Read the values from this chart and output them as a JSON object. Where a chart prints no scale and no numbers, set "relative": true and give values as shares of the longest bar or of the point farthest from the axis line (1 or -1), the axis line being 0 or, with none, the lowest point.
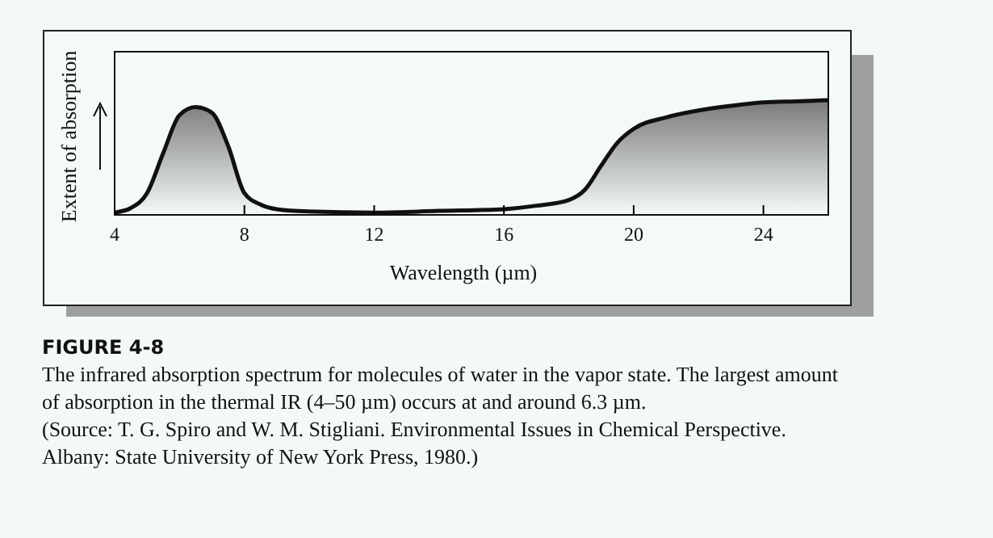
{
  "chart_data": {
    "type": "area",
    "title": "FIGURE 4-8",
    "subtitle": "The infrared absorption spectrum for molecules of water in the vapor state. The largest amount of absorption in the thermal IR (4–50 µm) occurs at and around 6.3 µm.",
    "annotations": [
      "(Source: T. G. Spiro and W. M. Stigliani. Environmental Issues in Chemical Perspective. Albany: State University of New York Press, 1980.)"
    ],
    "xlabel": "Wavelength (µm)",
    "ylabel": "Extent of absorption",
    "relative": true,
    "xlim": [
      4,
      26
    ],
    "xticks": [
      4,
      8,
      12,
      16,
      20,
      24
    ],
    "x": [
      4,
      4.5,
      5,
      5.5,
      6,
      6.5,
      7,
      7.5,
      8,
      8.5,
      9,
      10,
      12,
      14,
      16,
      17,
      18,
      18.5,
      19,
      19.5,
      20,
      21,
      22,
      23,
      24,
      25,
      26
    ],
    "series": [
      {
        "color": "#7a7a7a",
        "values": [
          0.02,
          0.06,
          0.19,
          0.54,
          0.87,
          0.94,
          0.89,
          0.6,
          0.19,
          0.09,
          0.05,
          0.03,
          0.02,
          0.035,
          0.05,
          0.08,
          0.13,
          0.22,
          0.43,
          0.63,
          0.75,
          0.85,
          0.91,
          0.95,
          0.98,
          0.99,
          1
        ]
      }
    ]
  }
}
